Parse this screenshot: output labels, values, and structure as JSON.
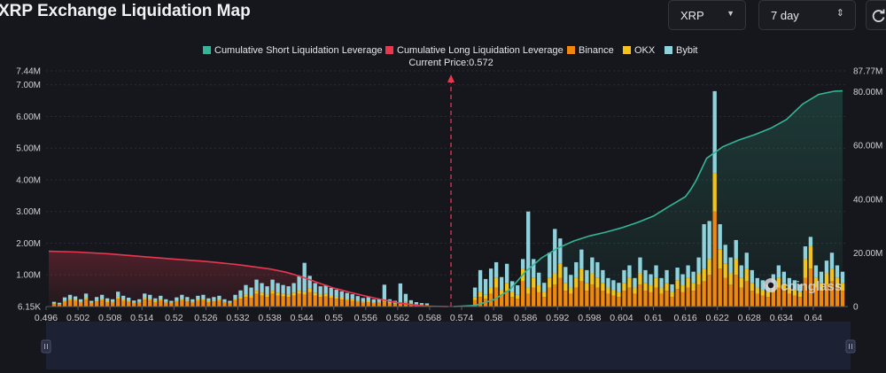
{
  "header": {
    "title": "XRP Exchange Liquidation Map",
    "symbol_select": "XRP",
    "range_select": "7 day"
  },
  "watermark": "coinglass",
  "colors": {
    "short": "#35b597",
    "long": "#e8384f",
    "binance": "#f0870f",
    "okx": "#f3c21b",
    "bybit": "#8fd2dc",
    "price_line": "#e8384f"
  },
  "chart_data": {
    "type": "bar",
    "current_price_label": "Current Price:0.572",
    "current_price": 0.572,
    "legend": [
      {
        "name": "Cumulative Short Liquidation Leverage",
        "color": "#35b597",
        "shape": "square"
      },
      {
        "name": "Cumulative Long Liquidation Leverage",
        "color": "#e8384f",
        "shape": "square"
      },
      {
        "name": "Binance",
        "color": "#f0870f",
        "shape": "square"
      },
      {
        "name": "OKX",
        "color": "#f3c21b",
        "shape": "square"
      },
      {
        "name": "Bybit",
        "color": "#8fd2dc",
        "shape": "square"
      }
    ],
    "x_ticks": [
      "0.496",
      "0.502",
      "0.508",
      "0.514",
      "0.52",
      "0.526",
      "0.532",
      "0.538",
      "0.544",
      "0.55",
      "0.556",
      "0.562",
      "0.568",
      "0.574",
      "0.58",
      "0.586",
      "0.592",
      "0.598",
      "0.604",
      "0.61",
      "0.616",
      "0.622",
      "0.628",
      "0.634",
      "0.64"
    ],
    "xlim": [
      0.496,
      0.6465
    ],
    "y_left_ticks": [
      {
        "label": "6.15K",
        "value": 0.00615
      },
      {
        "label": "1.00M",
        "value": 1.0
      },
      {
        "label": "2.00M",
        "value": 2.0
      },
      {
        "label": "3.00M",
        "value": 3.0
      },
      {
        "label": "4.00M",
        "value": 4.0
      },
      {
        "label": "5.00M",
        "value": 5.0
      },
      {
        "label": "6.00M",
        "value": 6.0
      },
      {
        "label": "7.00M",
        "value": 7.0
      },
      {
        "label": "7.44M",
        "value": 7.44
      }
    ],
    "y_left_lim": [
      0,
      7.44
    ],
    "y_right_ticks": [
      {
        "label": "0",
        "value": 0
      },
      {
        "label": "20.00M",
        "value": 20
      },
      {
        "label": "40.00M",
        "value": 40
      },
      {
        "label": "60.00M",
        "value": 60
      },
      {
        "label": "80.00M",
        "value": 80
      },
      {
        "label": "87.77M",
        "value": 87.77
      }
    ],
    "y_right_lim": [
      0,
      87.77
    ],
    "bar_x": [
      0.4975,
      0.4985,
      0.4995,
      0.5005,
      0.5015,
      0.5025,
      0.5035,
      0.5045,
      0.5055,
      0.5065,
      0.5075,
      0.5085,
      0.5095,
      0.5105,
      0.5115,
      0.5125,
      0.5135,
      0.5145,
      0.5155,
      0.5165,
      0.5175,
      0.5185,
      0.5195,
      0.5205,
      0.5215,
      0.5225,
      0.5235,
      0.5245,
      0.5255,
      0.5265,
      0.5275,
      0.5285,
      0.5295,
      0.5305,
      0.5315,
      0.5325,
      0.5335,
      0.5345,
      0.5355,
      0.5365,
      0.5375,
      0.5385,
      0.5395,
      0.5405,
      0.5415,
      0.5425,
      0.5435,
      0.5445,
      0.5455,
      0.5465,
      0.5475,
      0.5485,
      0.5495,
      0.5505,
      0.5515,
      0.5525,
      0.5535,
      0.5545,
      0.5555,
      0.5565,
      0.5575,
      0.5585,
      0.5595,
      0.5605,
      0.5615,
      0.5625,
      0.5635,
      0.5645,
      0.5655,
      0.5665,
      0.5675,
      0.5765,
      0.5775,
      0.5785,
      0.5795,
      0.5805,
      0.5815,
      0.5825,
      0.5835,
      0.5845,
      0.5855,
      0.5865,
      0.5875,
      0.5885,
      0.5895,
      0.5905,
      0.5915,
      0.5925,
      0.5935,
      0.5945,
      0.5955,
      0.5965,
      0.5975,
      0.5985,
      0.5995,
      0.6005,
      0.6015,
      0.6025,
      0.6035,
      0.6045,
      0.6055,
      0.6065,
      0.6075,
      0.6085,
      0.6095,
      0.6105,
      0.6115,
      0.6125,
      0.6135,
      0.6145,
      0.6155,
      0.6165,
      0.6175,
      0.6185,
      0.6195,
      0.6205,
      0.6215,
      0.6225,
      0.6235,
      0.6245,
      0.6255,
      0.6265,
      0.6275,
      0.6285,
      0.6295,
      0.6305,
      0.6315,
      0.6325,
      0.6335,
      0.6345,
      0.6355,
      0.6365,
      0.6375,
      0.6385,
      0.6395,
      0.6405,
      0.6415,
      0.6425,
      0.6435,
      0.6445,
      0.6455
    ],
    "series": [
      {
        "name": "Binance",
        "values": [
          0.08,
          0.06,
          0.15,
          0.2,
          0.18,
          0.12,
          0.22,
          0.1,
          0.16,
          0.2,
          0.14,
          0.12,
          0.25,
          0.18,
          0.15,
          0.1,
          0.12,
          0.22,
          0.2,
          0.14,
          0.18,
          0.12,
          0.1,
          0.15,
          0.2,
          0.16,
          0.12,
          0.18,
          0.2,
          0.14,
          0.16,
          0.18,
          0.12,
          0.1,
          0.2,
          0.25,
          0.3,
          0.28,
          0.4,
          0.35,
          0.3,
          0.4,
          0.35,
          0.32,
          0.3,
          0.35,
          0.4,
          0.38,
          0.45,
          0.35,
          0.3,
          0.32,
          0.28,
          0.25,
          0.22,
          0.2,
          0.18,
          0.15,
          0.12,
          0.14,
          0.1,
          0.12,
          0.15,
          0.1,
          0.08,
          0.1,
          0.12,
          0.08,
          0.06,
          0.05,
          0.04,
          0.2,
          0.3,
          0.25,
          0.4,
          0.6,
          0.35,
          0.5,
          0.3,
          0.25,
          0.8,
          0.4,
          0.6,
          0.45,
          0.3,
          0.6,
          0.7,
          0.9,
          0.5,
          0.4,
          0.6,
          0.8,
          0.5,
          0.7,
          0.6,
          0.5,
          0.4,
          0.35,
          0.3,
          0.5,
          0.6,
          0.4,
          0.7,
          0.5,
          0.45,
          0.6,
          0.4,
          0.5,
          0.3,
          0.55,
          0.45,
          0.6,
          0.5,
          0.7,
          0.8,
          1.0,
          3.0,
          1.2,
          0.9,
          0.7,
          1.0,
          0.6,
          0.8,
          0.5,
          0.4,
          0.35,
          0.3,
          0.45,
          0.6,
          0.5,
          0.4,
          0.35,
          0.3,
          0.9,
          1.2,
          0.6,
          0.5,
          0.7,
          0.8,
          0.6,
          0.5,
          0.4,
          0.3
        ]
      },
      {
        "name": "OKX",
        "values": [
          0.02,
          0.02,
          0.04,
          0.05,
          0.04,
          0.03,
          0.05,
          0.02,
          0.04,
          0.05,
          0.03,
          0.03,
          0.06,
          0.04,
          0.03,
          0.02,
          0.03,
          0.05,
          0.05,
          0.03,
          0.04,
          0.03,
          0.02,
          0.04,
          0.05,
          0.04,
          0.03,
          0.04,
          0.05,
          0.03,
          0.04,
          0.04,
          0.03,
          0.02,
          0.05,
          0.06,
          0.08,
          0.07,
          0.1,
          0.09,
          0.08,
          0.1,
          0.09,
          0.08,
          0.08,
          0.09,
          0.1,
          0.1,
          0.12,
          0.09,
          0.08,
          0.08,
          0.07,
          0.06,
          0.06,
          0.05,
          0.05,
          0.04,
          0.03,
          0.04,
          0.03,
          0.03,
          0.04,
          0.03,
          0.02,
          0.03,
          0.03,
          0.02,
          0.02,
          0.01,
          0.01,
          0.1,
          0.15,
          0.12,
          0.2,
          0.3,
          0.18,
          0.25,
          0.15,
          0.12,
          0.4,
          0.2,
          0.3,
          0.22,
          0.15,
          0.3,
          0.35,
          0.45,
          0.25,
          0.2,
          0.3,
          0.4,
          0.25,
          0.35,
          0.3,
          0.25,
          0.2,
          0.18,
          0.15,
          0.25,
          0.3,
          0.2,
          0.35,
          0.25,
          0.22,
          0.3,
          0.2,
          0.25,
          0.15,
          0.28,
          0.22,
          0.3,
          0.25,
          0.35,
          0.4,
          0.5,
          1.2,
          0.6,
          0.45,
          0.35,
          0.5,
          0.3,
          0.4,
          0.25,
          0.2,
          0.18,
          0.15,
          0.22,
          0.3,
          0.25,
          0.2,
          0.18,
          0.15,
          0.6,
          0.7,
          0.3,
          0.25,
          0.35,
          0.4,
          0.3,
          0.25,
          0.2,
          0.15
        ]
      },
      {
        "name": "Bybit",
        "values": [
          0.05,
          0.04,
          0.1,
          0.12,
          0.1,
          0.08,
          0.14,
          0.06,
          0.1,
          0.12,
          0.09,
          0.08,
          0.16,
          0.12,
          0.1,
          0.07,
          0.08,
          0.14,
          0.12,
          0.09,
          0.12,
          0.08,
          0.06,
          0.1,
          0.12,
          0.1,
          0.08,
          0.12,
          0.12,
          0.09,
          0.1,
          0.12,
          0.08,
          0.06,
          0.12,
          0.2,
          0.3,
          0.25,
          0.35,
          0.3,
          0.26,
          0.35,
          0.3,
          0.28,
          0.26,
          0.3,
          0.45,
          0.9,
          0.4,
          0.3,
          0.26,
          0.28,
          0.24,
          0.22,
          0.2,
          0.18,
          0.16,
          0.14,
          0.12,
          0.12,
          0.1,
          0.1,
          0.5,
          0.1,
          0.08,
          0.6,
          0.25,
          0.1,
          0.06,
          0.05,
          0.05,
          0.3,
          0.7,
          0.5,
          0.6,
          0.5,
          0.4,
          0.6,
          0.35,
          0.3,
          0.3,
          2.4,
          0.6,
          0.4,
          0.3,
          0.8,
          1.4,
          0.8,
          0.5,
          0.4,
          0.5,
          0.6,
          0.4,
          0.5,
          0.5,
          0.4,
          0.3,
          0.3,
          0.3,
          0.4,
          0.4,
          0.3,
          0.5,
          0.4,
          0.35,
          0.4,
          0.3,
          0.4,
          0.25,
          0.4,
          0.35,
          0.4,
          0.35,
          0.5,
          1.4,
          1.2,
          2.6,
          0.8,
          0.6,
          0.5,
          0.6,
          0.4,
          0.5,
          0.4,
          0.3,
          0.3,
          0.25,
          0.35,
          0.4,
          0.35,
          0.3,
          0.3,
          0.25,
          0.4,
          0.3,
          0.4,
          0.35,
          0.4,
          0.5,
          0.4,
          0.35,
          0.3,
          0.2
        ]
      }
    ],
    "long_cumulative": {
      "x": [
        0.4965,
        0.502,
        0.508,
        0.514,
        0.52,
        0.526,
        0.532,
        0.538,
        0.541,
        0.544,
        0.547,
        0.55,
        0.553,
        0.556,
        0.559,
        0.562,
        0.565,
        0.567,
        0.5715
      ],
      "y": [
        20.6,
        20.3,
        19.6,
        18.6,
        17.7,
        16.8,
        15.6,
        14.0,
        12.8,
        11.1,
        8.9,
        6.9,
        5.3,
        3.9,
        2.6,
        1.4,
        0.6,
        0.15,
        0
      ]
    },
    "short_cumulative": {
      "x": [
        0.5725,
        0.5765,
        0.58,
        0.583,
        0.586,
        0.589,
        0.592,
        0.595,
        0.598,
        0.601,
        0.604,
        0.607,
        0.61,
        0.613,
        0.616,
        0.617,
        0.618,
        0.62,
        0.623,
        0.626,
        0.629,
        0.632,
        0.635,
        0.638,
        0.641,
        0.644,
        0.6455
      ],
      "y": [
        0,
        0.4,
        2.5,
        6.2,
        13.0,
        18.1,
        21.7,
        24.4,
        26.3,
        27.7,
        29.3,
        31.3,
        33.7,
        37.4,
        40.9,
        43.6,
        46.9,
        55.2,
        59.5,
        62.0,
        64.0,
        66.4,
        69.7,
        75.4,
        79.0,
        80.2,
        80.3
      ]
    }
  }
}
